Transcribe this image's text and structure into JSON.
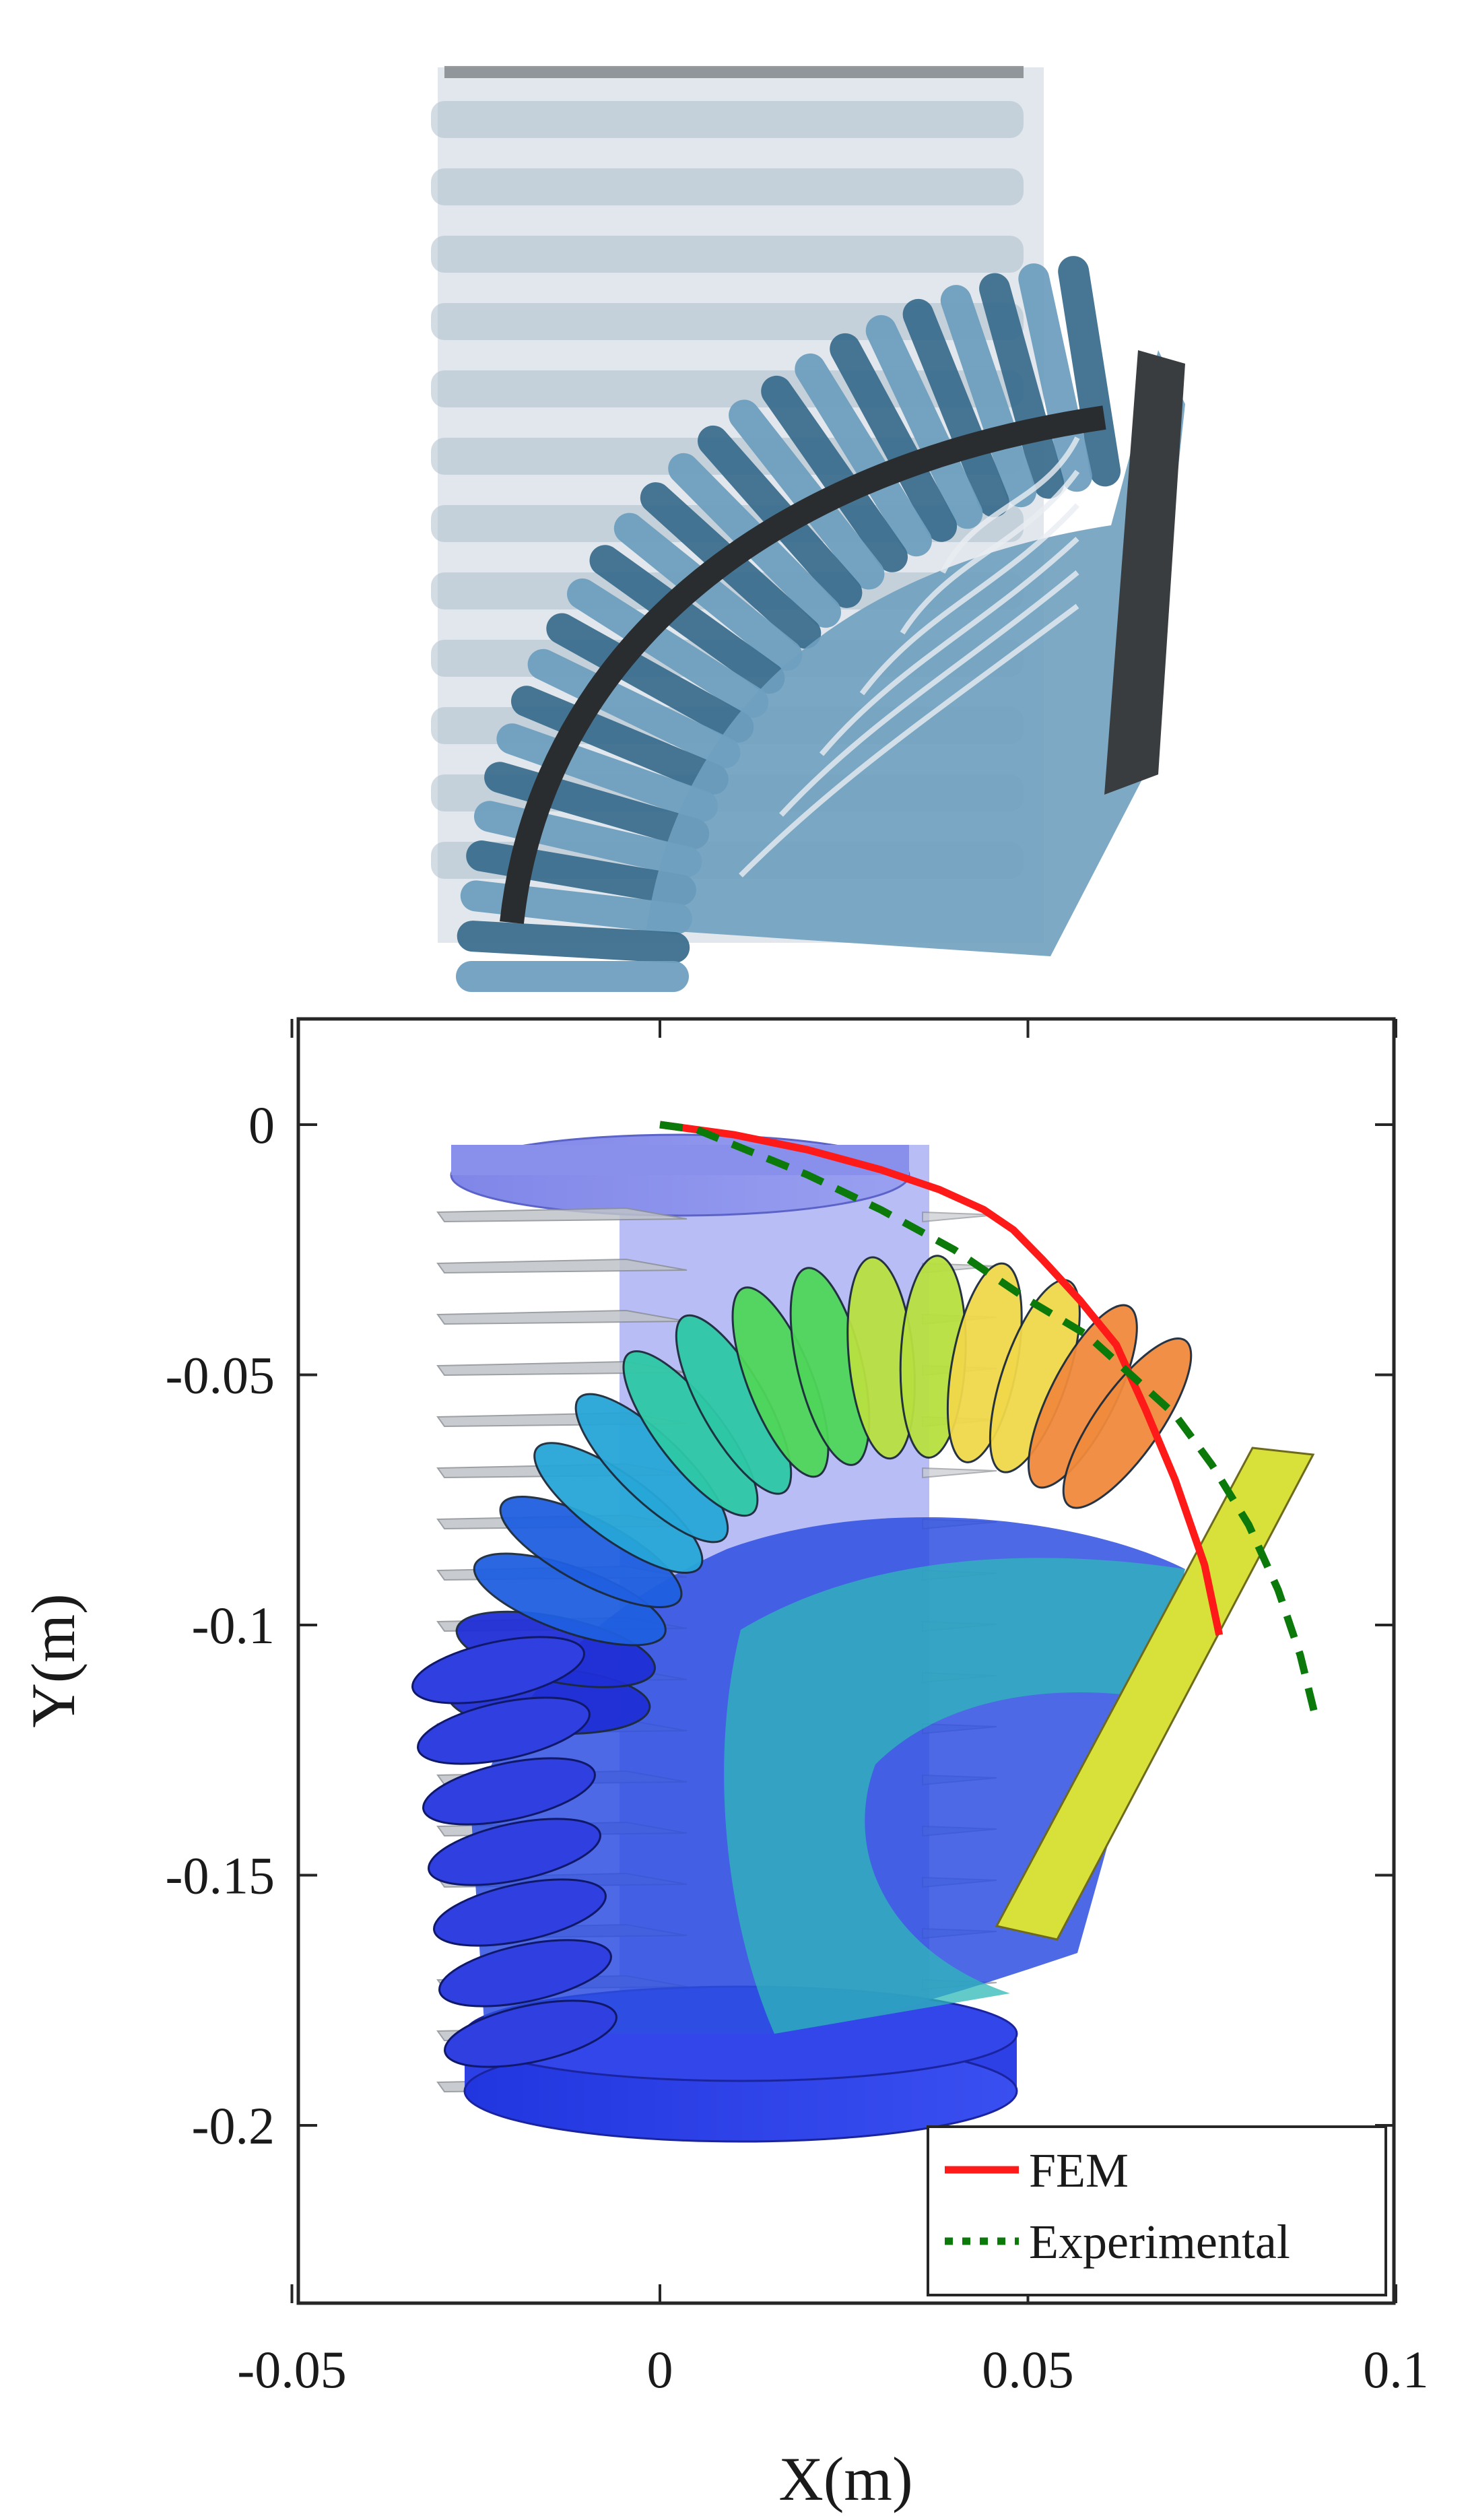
{
  "chart_data": {
    "type": "line",
    "xlabel": "X(m)",
    "ylabel": "Y(m)",
    "xlim": [
      -0.05,
      0.1
    ],
    "ylim": [
      -0.24,
      0.02
    ],
    "x_ticks": [
      -0.05,
      0,
      0.05,
      0.1
    ],
    "x_tick_labels": [
      "-0.05",
      "0",
      "0.05",
      "0.1"
    ],
    "y_ticks": [
      0,
      -0.05,
      -0.1,
      -0.15,
      -0.2
    ],
    "y_tick_labels": [
      "0",
      "-0.05",
      "-0.1",
      "-0.15",
      "-0.2"
    ],
    "grid": false,
    "legend_position": "bottom-right",
    "series": [
      {
        "name": "FEM",
        "color": "#ff1a1a",
        "style": "solid",
        "x": [
          0.0,
          0.01,
          0.02,
          0.03,
          0.038,
          0.044,
          0.048,
          0.052,
          0.057,
          0.062,
          0.066,
          0.07,
          0.074,
          0.076
        ],
        "y": [
          0.0,
          -0.002,
          -0.005,
          -0.009,
          -0.013,
          -0.017,
          -0.021,
          -0.027,
          -0.035,
          -0.044,
          -0.057,
          -0.071,
          -0.088,
          -0.102
        ]
      },
      {
        "name": "Experimental",
        "color": "#0b7a0b",
        "style": "dashed",
        "x": [
          0.0,
          0.005,
          0.01,
          0.02,
          0.03,
          0.04,
          0.05,
          0.058,
          0.064,
          0.07,
          0.075,
          0.08,
          0.084,
          0.087,
          0.089
        ],
        "y": [
          0.0,
          -0.001,
          -0.004,
          -0.01,
          -0.017,
          -0.025,
          -0.035,
          -0.042,
          -0.05,
          -0.058,
          -0.068,
          -0.08,
          -0.093,
          -0.106,
          -0.118
        ]
      }
    ],
    "simulation_colormap": [
      "#1f2fd6",
      "#1f5fe0",
      "#27a6d8",
      "#2ec8a6",
      "#4fd65a",
      "#b8e040",
      "#f0d84a",
      "#f08a3c"
    ]
  },
  "photo": {
    "colors": {
      "fabric": "#6fa0bf",
      "fabric_dark": "#3d6f8f",
      "spine": "#2a2d30",
      "ghost": "#c8d3dc"
    }
  }
}
